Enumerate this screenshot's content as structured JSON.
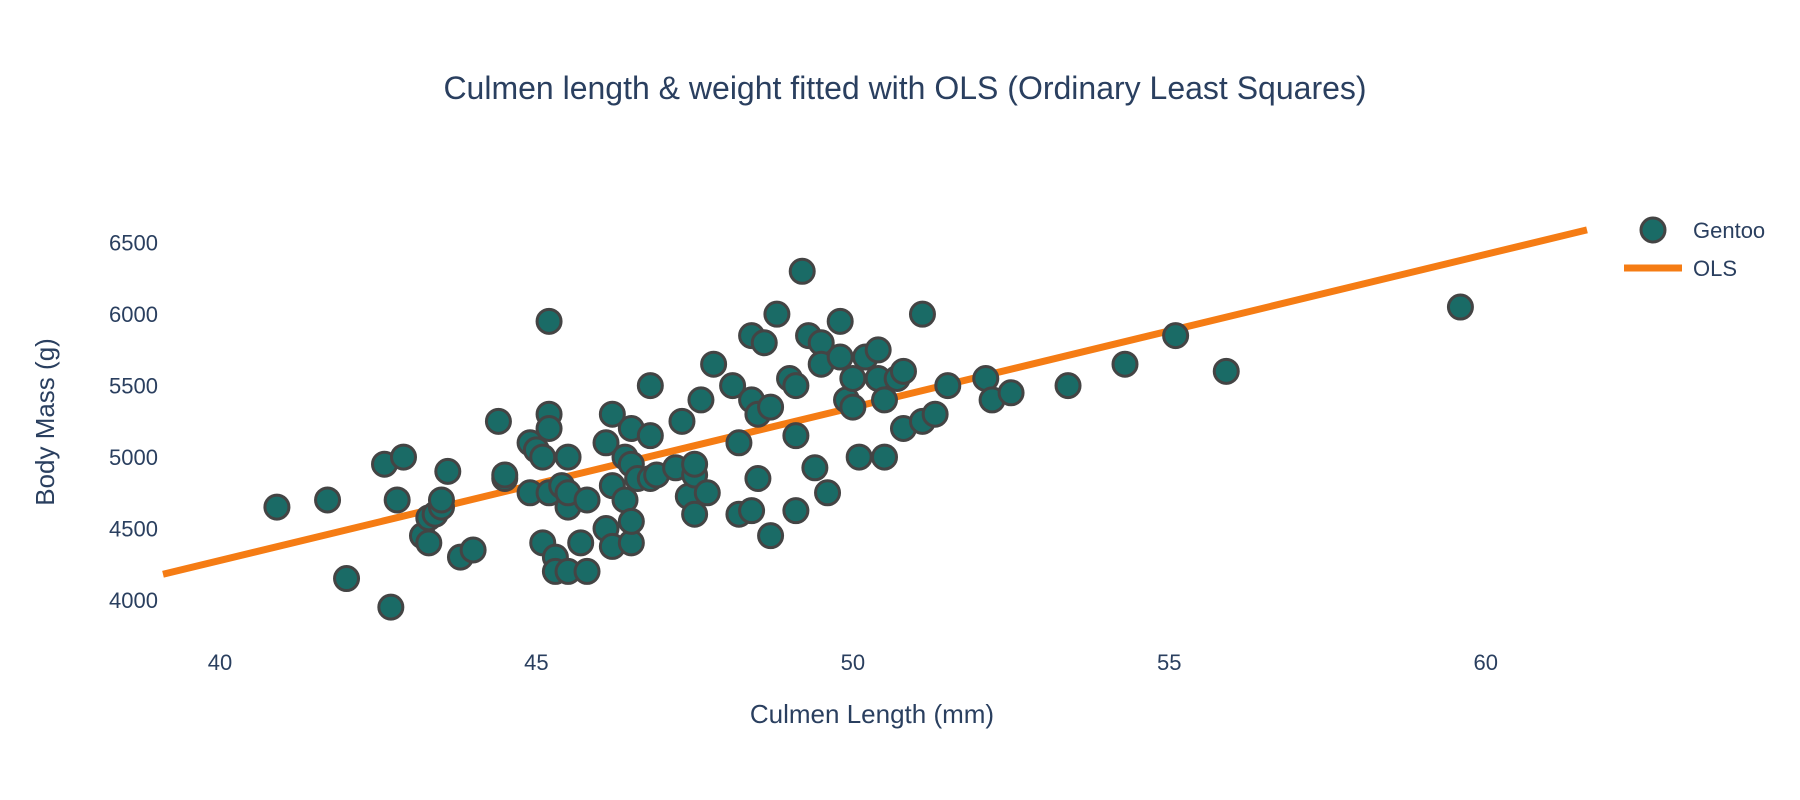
{
  "chart_data": {
    "type": "scatter",
    "title": "Culmen length & weight fitted with OLS (Ordinary Least Squares)",
    "xlabel": "Culmen Length (mm)",
    "ylabel": "Body Mass (g)",
    "xlim": [
      39.1,
      61.6
    ],
    "ylim": [
      3650,
      6750
    ],
    "xticks": [
      40,
      45,
      50,
      55,
      60
    ],
    "yticks": [
      4000,
      4500,
      5000,
      5500,
      6000,
      6500
    ],
    "grid": false,
    "legend_position": "top-right",
    "colors": {
      "marker_fill": "#1a6b66",
      "marker_edge": "#444444",
      "ols_line": "#f57c14",
      "text": "#2a3f5f"
    },
    "series": [
      {
        "name": "Gentoo",
        "type": "scatter",
        "points": [
          [
            40.9,
            4650
          ],
          [
            41.7,
            4700
          ],
          [
            42.0,
            4150
          ],
          [
            42.6,
            4950
          ],
          [
            42.7,
            3950
          ],
          [
            42.8,
            4700
          ],
          [
            42.9,
            5000
          ],
          [
            43.2,
            4450
          ],
          [
            43.3,
            4400
          ],
          [
            43.3,
            4575
          ],
          [
            43.4,
            4600
          ],
          [
            43.5,
            4650
          ],
          [
            43.5,
            4700
          ],
          [
            43.6,
            4900
          ],
          [
            43.8,
            4300
          ],
          [
            44.0,
            4350
          ],
          [
            44.4,
            5250
          ],
          [
            44.5,
            4850
          ],
          [
            44.5,
            4875
          ],
          [
            44.9,
            4750
          ],
          [
            44.9,
            5100
          ],
          [
            45.0,
            5050
          ],
          [
            45.1,
            5000
          ],
          [
            45.1,
            4400
          ],
          [
            45.2,
            5300
          ],
          [
            45.2,
            5200
          ],
          [
            45.2,
            5950
          ],
          [
            45.2,
            4750
          ],
          [
            45.3,
            4300
          ],
          [
            45.3,
            4200
          ],
          [
            45.4,
            4800
          ],
          [
            45.5,
            4200
          ],
          [
            45.5,
            4650
          ],
          [
            45.5,
            4750
          ],
          [
            45.5,
            5000
          ],
          [
            45.7,
            4400
          ],
          [
            45.8,
            4700
          ],
          [
            45.8,
            4200
          ],
          [
            46.1,
            5100
          ],
          [
            46.1,
            4500
          ],
          [
            46.2,
            5300
          ],
          [
            46.2,
            4800
          ],
          [
            46.2,
            4375
          ],
          [
            46.4,
            5000
          ],
          [
            46.4,
            4700
          ],
          [
            46.5,
            4400
          ],
          [
            46.5,
            4550
          ],
          [
            46.5,
            4950
          ],
          [
            46.5,
            5200
          ],
          [
            46.6,
            4850
          ],
          [
            46.8,
            5150
          ],
          [
            46.8,
            5500
          ],
          [
            46.8,
            4850
          ],
          [
            46.9,
            4875
          ],
          [
            47.2,
            4925
          ],
          [
            47.3,
            5250
          ],
          [
            47.4,
            4725
          ],
          [
            47.5,
            4600
          ],
          [
            47.5,
            4875
          ],
          [
            47.5,
            4950
          ],
          [
            47.6,
            5400
          ],
          [
            47.7,
            4750
          ],
          [
            47.8,
            5650
          ],
          [
            48.1,
            5500
          ],
          [
            48.2,
            5100
          ],
          [
            48.2,
            4600
          ],
          [
            48.4,
            5850
          ],
          [
            48.4,
            5400
          ],
          [
            48.4,
            4625
          ],
          [
            48.5,
            5300
          ],
          [
            48.5,
            4850
          ],
          [
            48.6,
            5800
          ],
          [
            48.7,
            5350
          ],
          [
            48.7,
            4450
          ],
          [
            48.8,
            6000
          ],
          [
            49.0,
            5550
          ],
          [
            49.1,
            5500
          ],
          [
            49.1,
            5150
          ],
          [
            49.1,
            4625
          ],
          [
            49.2,
            6300
          ],
          [
            49.3,
            5850
          ],
          [
            49.4,
            4925
          ],
          [
            49.5,
            5800
          ],
          [
            49.5,
            5650
          ],
          [
            49.6,
            4750
          ],
          [
            49.8,
            5950
          ],
          [
            49.8,
            5700
          ],
          [
            49.9,
            5400
          ],
          [
            50.0,
            5350
          ],
          [
            50.0,
            5550
          ],
          [
            50.1,
            5000
          ],
          [
            50.2,
            5700
          ],
          [
            50.4,
            5750
          ],
          [
            50.4,
            5550
          ],
          [
            50.5,
            5000
          ],
          [
            50.5,
            5400
          ],
          [
            50.7,
            5550
          ],
          [
            50.8,
            5600
          ],
          [
            50.8,
            5200
          ],
          [
            51.1,
            6000
          ],
          [
            51.1,
            5250
          ],
          [
            51.3,
            5300
          ],
          [
            51.5,
            5500
          ],
          [
            52.1,
            5550
          ],
          [
            52.2,
            5400
          ],
          [
            52.5,
            5450
          ],
          [
            53.4,
            5500
          ],
          [
            54.3,
            5650
          ],
          [
            55.1,
            5850
          ],
          [
            55.9,
            5600
          ],
          [
            59.6,
            6050
          ]
        ]
      },
      {
        "name": "OLS",
        "type": "line",
        "x": [
          39.1,
          61.6
        ],
        "y": [
          4180,
          6590
        ]
      }
    ]
  }
}
